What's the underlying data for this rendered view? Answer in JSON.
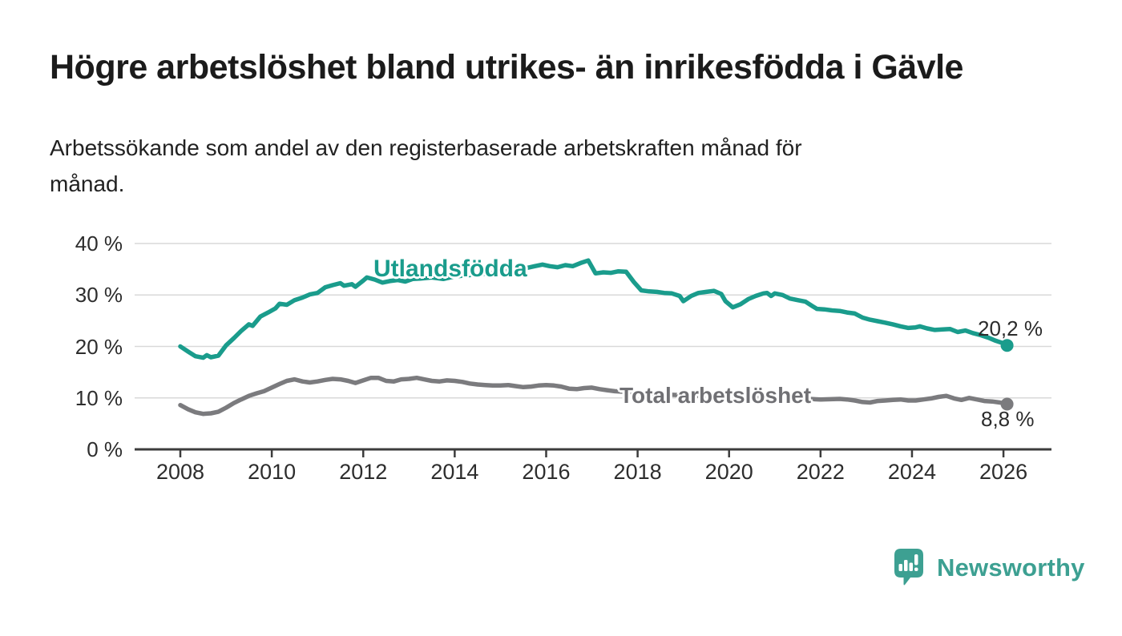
{
  "header": {
    "title": "Högre arbetslöshet bland utrikes- än inrikesfödda i Gävle",
    "subtitle_line1": "Arbetssökande som andel av den registerbaserade arbetskraften månad för",
    "subtitle_line2": "månad."
  },
  "colors": {
    "teal_line": "#1a9c8c",
    "gray_line": "#7b7b7e",
    "gray_label": "#707074",
    "grid": "#d9d9d9",
    "axis": "#3c3c3c",
    "text": "#2d2d2d",
    "logo_teal": "#3da092"
  },
  "logo": {
    "text": "Newsworthy",
    "icon": "speech-bubble-bar-chart"
  },
  "chart_data": {
    "type": "line",
    "unit": "%",
    "grid": "horizontal",
    "xlim": [
      2007,
      2027.05
    ],
    "ylim": [
      0,
      40
    ],
    "x_ticks": [
      2008,
      2010,
      2012,
      2014,
      2016,
      2018,
      2020,
      2022,
      2024,
      2026
    ],
    "x_tick_labels": [
      "2008",
      "2010",
      "2012",
      "2014",
      "2016",
      "2018",
      "2020",
      "2022",
      "2024",
      "2026"
    ],
    "y_ticks": [
      0,
      10,
      20,
      30,
      40
    ],
    "y_tick_labels": [
      "0 %",
      "10 %",
      "20 %",
      "30 %",
      "40 %"
    ],
    "series": [
      {
        "name": "Utlandsfödda",
        "color": "#1a9c8c",
        "end_value": 20.2,
        "end_label": "20,2 %",
        "points": [
          [
            2008.0,
            20.0
          ],
          [
            2008.17,
            19.0
          ],
          [
            2008.33,
            18.1
          ],
          [
            2008.5,
            17.8
          ],
          [
            2008.58,
            18.3
          ],
          [
            2008.67,
            17.9
          ],
          [
            2008.83,
            18.2
          ],
          [
            2009.0,
            20.2
          ],
          [
            2009.17,
            21.6
          ],
          [
            2009.33,
            23.0
          ],
          [
            2009.5,
            24.3
          ],
          [
            2009.58,
            24.0
          ],
          [
            2009.75,
            25.8
          ],
          [
            2009.92,
            26.6
          ],
          [
            2010.08,
            27.4
          ],
          [
            2010.17,
            28.3
          ],
          [
            2010.33,
            28.1
          ],
          [
            2010.5,
            29.0
          ],
          [
            2010.67,
            29.5
          ],
          [
            2010.83,
            30.1
          ],
          [
            2011.0,
            30.4
          ],
          [
            2011.17,
            31.5
          ],
          [
            2011.33,
            31.9
          ],
          [
            2011.5,
            32.3
          ],
          [
            2011.58,
            31.8
          ],
          [
            2011.75,
            32.1
          ],
          [
            2011.83,
            31.6
          ],
          [
            2012.0,
            32.8
          ],
          [
            2012.08,
            33.4
          ],
          [
            2012.25,
            33.0
          ],
          [
            2012.42,
            32.4
          ],
          [
            2012.58,
            32.7
          ],
          [
            2012.75,
            32.9
          ],
          [
            2012.92,
            32.6
          ],
          [
            2013.08,
            33.1
          ],
          [
            2013.25,
            33.2
          ],
          [
            2013.5,
            33.4
          ],
          [
            2013.75,
            33.1
          ],
          [
            2014.0,
            33.6
          ],
          [
            2014.25,
            33.8
          ],
          [
            2014.5,
            34.0
          ],
          [
            2014.75,
            34.2
          ],
          [
            2015.0,
            34.5
          ],
          [
            2015.25,
            34.8
          ],
          [
            2015.5,
            35.1
          ],
          [
            2015.75,
            35.6
          ],
          [
            2015.92,
            35.9
          ],
          [
            2016.08,
            35.6
          ],
          [
            2016.25,
            35.4
          ],
          [
            2016.42,
            35.8
          ],
          [
            2016.58,
            35.6
          ],
          [
            2016.75,
            36.2
          ],
          [
            2016.92,
            36.7
          ],
          [
            2017.08,
            34.2
          ],
          [
            2017.25,
            34.4
          ],
          [
            2017.42,
            34.3
          ],
          [
            2017.58,
            34.6
          ],
          [
            2017.75,
            34.5
          ],
          [
            2017.92,
            32.5
          ],
          [
            2018.08,
            30.9
          ],
          [
            2018.25,
            30.7
          ],
          [
            2018.42,
            30.6
          ],
          [
            2018.58,
            30.4
          ],
          [
            2018.75,
            30.3
          ],
          [
            2018.92,
            29.8
          ],
          [
            2019.0,
            28.8
          ],
          [
            2019.17,
            29.8
          ],
          [
            2019.33,
            30.4
          ],
          [
            2019.5,
            30.6
          ],
          [
            2019.67,
            30.8
          ],
          [
            2019.83,
            30.2
          ],
          [
            2019.92,
            28.8
          ],
          [
            2020.08,
            27.6
          ],
          [
            2020.25,
            28.2
          ],
          [
            2020.42,
            29.2
          ],
          [
            2020.58,
            29.8
          ],
          [
            2020.75,
            30.3
          ],
          [
            2020.83,
            30.4
          ],
          [
            2020.92,
            29.8
          ],
          [
            2021.0,
            30.3
          ],
          [
            2021.17,
            30.0
          ],
          [
            2021.33,
            29.3
          ],
          [
            2021.5,
            29.0
          ],
          [
            2021.67,
            28.7
          ],
          [
            2021.83,
            27.8
          ],
          [
            2021.92,
            27.3
          ],
          [
            2022.08,
            27.2
          ],
          [
            2022.25,
            27.0
          ],
          [
            2022.42,
            26.9
          ],
          [
            2022.58,
            26.6
          ],
          [
            2022.75,
            26.4
          ],
          [
            2022.92,
            25.6
          ],
          [
            2023.08,
            25.2
          ],
          [
            2023.25,
            24.9
          ],
          [
            2023.42,
            24.6
          ],
          [
            2023.58,
            24.3
          ],
          [
            2023.75,
            23.9
          ],
          [
            2023.92,
            23.6
          ],
          [
            2024.08,
            23.7
          ],
          [
            2024.17,
            23.9
          ],
          [
            2024.33,
            23.5
          ],
          [
            2024.5,
            23.2
          ],
          [
            2024.67,
            23.3
          ],
          [
            2024.83,
            23.4
          ],
          [
            2025.0,
            22.8
          ],
          [
            2025.17,
            23.1
          ],
          [
            2025.33,
            22.6
          ],
          [
            2025.5,
            22.2
          ],
          [
            2025.67,
            21.7
          ],
          [
            2025.83,
            21.1
          ],
          [
            2026.0,
            20.6
          ],
          [
            2026.08,
            20.2
          ]
        ]
      },
      {
        "name": "Total arbetslöshet",
        "color": "#7b7b7e",
        "end_value": 8.8,
        "end_label": "8,8 %",
        "points": [
          [
            2008.0,
            8.6
          ],
          [
            2008.17,
            7.8
          ],
          [
            2008.33,
            7.2
          ],
          [
            2008.5,
            6.9
          ],
          [
            2008.67,
            7.0
          ],
          [
            2008.83,
            7.3
          ],
          [
            2009.0,
            8.1
          ],
          [
            2009.17,
            9.0
          ],
          [
            2009.33,
            9.7
          ],
          [
            2009.5,
            10.4
          ],
          [
            2009.67,
            10.9
          ],
          [
            2009.83,
            11.3
          ],
          [
            2010.0,
            12.0
          ],
          [
            2010.17,
            12.7
          ],
          [
            2010.33,
            13.3
          ],
          [
            2010.5,
            13.6
          ],
          [
            2010.67,
            13.2
          ],
          [
            2010.83,
            13.0
          ],
          [
            2011.0,
            13.2
          ],
          [
            2011.17,
            13.5
          ],
          [
            2011.33,
            13.7
          ],
          [
            2011.5,
            13.6
          ],
          [
            2011.67,
            13.3
          ],
          [
            2011.83,
            12.9
          ],
          [
            2012.0,
            13.4
          ],
          [
            2012.17,
            13.9
          ],
          [
            2012.33,
            13.9
          ],
          [
            2012.5,
            13.3
          ],
          [
            2012.67,
            13.2
          ],
          [
            2012.83,
            13.6
          ],
          [
            2013.0,
            13.7
          ],
          [
            2013.17,
            13.9
          ],
          [
            2013.33,
            13.6
          ],
          [
            2013.5,
            13.3
          ],
          [
            2013.67,
            13.2
          ],
          [
            2013.83,
            13.4
          ],
          [
            2014.0,
            13.3
          ],
          [
            2014.17,
            13.1
          ],
          [
            2014.33,
            12.8
          ],
          [
            2014.5,
            12.6
          ],
          [
            2014.67,
            12.5
          ],
          [
            2014.83,
            12.4
          ],
          [
            2015.0,
            12.4
          ],
          [
            2015.17,
            12.5
          ],
          [
            2015.33,
            12.3
          ],
          [
            2015.5,
            12.1
          ],
          [
            2015.67,
            12.2
          ],
          [
            2015.83,
            12.4
          ],
          [
            2016.0,
            12.5
          ],
          [
            2016.17,
            12.4
          ],
          [
            2016.33,
            12.2
          ],
          [
            2016.5,
            11.8
          ],
          [
            2016.67,
            11.7
          ],
          [
            2016.83,
            11.9
          ],
          [
            2017.0,
            12.0
          ],
          [
            2017.17,
            11.7
          ],
          [
            2017.33,
            11.5
          ],
          [
            2017.5,
            11.3
          ],
          [
            2017.67,
            11.2
          ],
          [
            2018.0,
            11.0
          ],
          [
            2018.5,
            10.7
          ],
          [
            2019.0,
            10.5
          ],
          [
            2019.5,
            10.4
          ],
          [
            2020.0,
            10.5
          ],
          [
            2020.5,
            10.3
          ],
          [
            2021.0,
            10.0
          ],
          [
            2021.5,
            9.9
          ],
          [
            2022.0,
            9.7
          ],
          [
            2022.42,
            9.8
          ],
          [
            2022.58,
            9.7
          ],
          [
            2022.75,
            9.5
          ],
          [
            2022.92,
            9.2
          ],
          [
            2023.08,
            9.1
          ],
          [
            2023.25,
            9.4
          ],
          [
            2023.42,
            9.5
          ],
          [
            2023.58,
            9.6
          ],
          [
            2023.75,
            9.7
          ],
          [
            2023.92,
            9.5
          ],
          [
            2024.08,
            9.5
          ],
          [
            2024.25,
            9.7
          ],
          [
            2024.42,
            9.9
          ],
          [
            2024.58,
            10.2
          ],
          [
            2024.75,
            10.4
          ],
          [
            2024.92,
            9.9
          ],
          [
            2025.08,
            9.6
          ],
          [
            2025.25,
            10.0
          ],
          [
            2025.42,
            9.7
          ],
          [
            2025.58,
            9.4
          ],
          [
            2025.75,
            9.3
          ],
          [
            2025.92,
            9.1
          ],
          [
            2026.08,
            8.8
          ]
        ]
      }
    ]
  }
}
